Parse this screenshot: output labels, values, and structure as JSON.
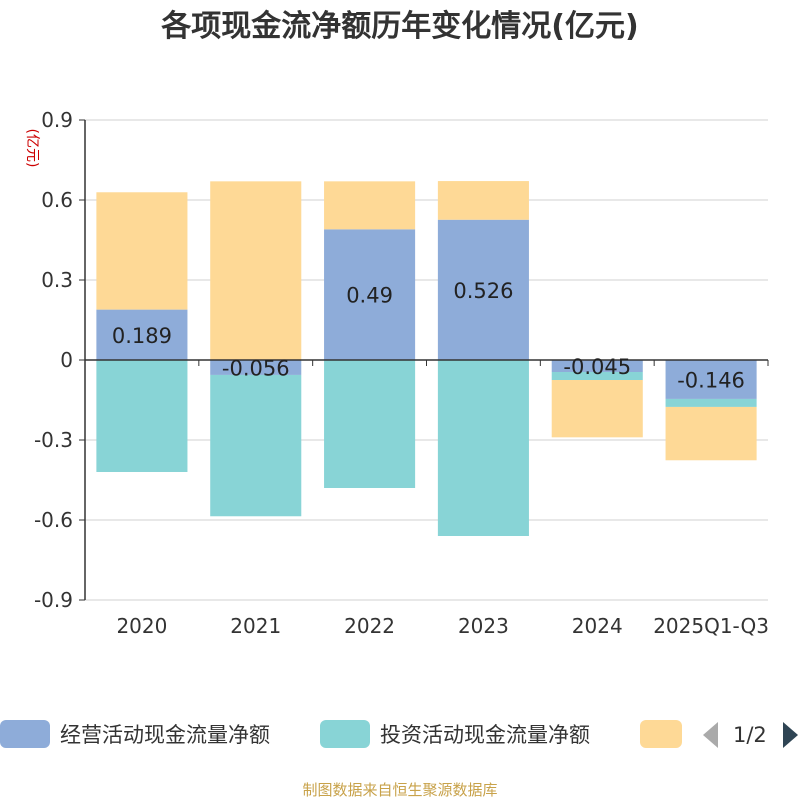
{
  "chart_data": {
    "type": "bar",
    "stacked": true,
    "title": "各项现金流净额历年变化情况(亿元)",
    "unit_label": "(亿元)",
    "categories": [
      "2020",
      "2021",
      "2022",
      "2023",
      "2024",
      "2025Q1-Q3"
    ],
    "ylim": [
      -0.9,
      0.9
    ],
    "yticks": [
      "0.9",
      "0.6",
      "0.3",
      "0",
      "-0.3",
      "-0.6",
      "-0.9"
    ],
    "grid": true,
    "legend_position": "bottom",
    "series": [
      {
        "name": "经营活动现金流量净额",
        "color": "#8eacd9",
        "values": [
          0.189,
          -0.056,
          0.49,
          0.526,
          -0.045,
          -0.146
        ],
        "labels": [
          "0.189",
          "-0.056",
          "0.49",
          "0.526",
          "-0.045",
          "-0.146"
        ]
      },
      {
        "name": "投资活动现金流量净额",
        "color": "#88d4d6",
        "values": [
          -0.42,
          -0.53,
          -0.48,
          -0.66,
          -0.03,
          -0.03
        ]
      },
      {
        "color": "#fed996",
        "values": [
          0.44,
          0.67,
          0.18,
          0.145,
          -0.215,
          -0.2
        ]
      }
    ]
  },
  "legend": {
    "page": "1/2"
  },
  "footer": {
    "source": "制图数据来自恒生聚源数据库"
  }
}
